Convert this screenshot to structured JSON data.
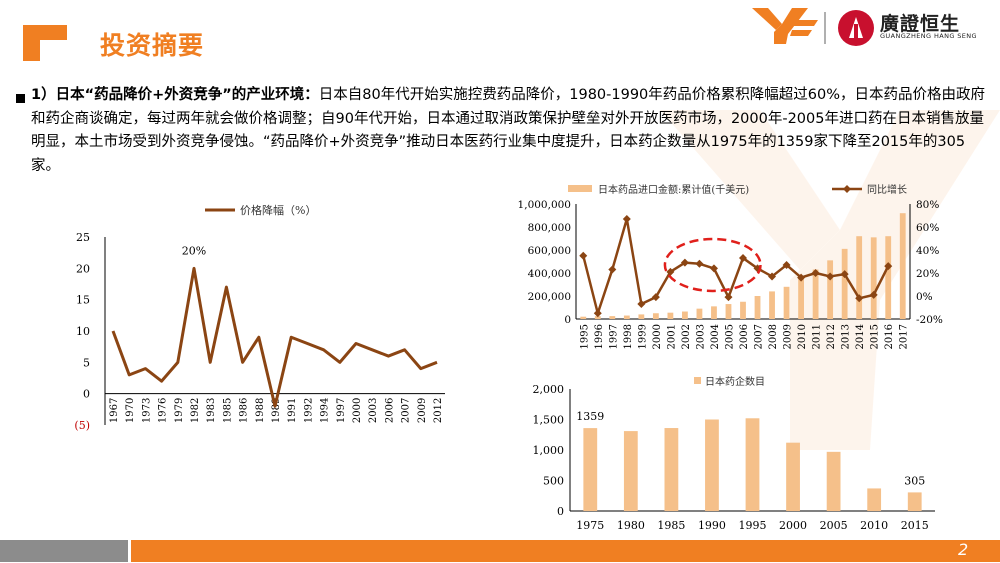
{
  "header": {
    "title": "投资摘要",
    "logo_cn": "廣證恒生",
    "logo_en": "GUANGZHENG HANG SENG",
    "page_number": "2"
  },
  "paragraph": {
    "lead": "1）日本“药品降价+外资竞争”的产业环境：",
    "body": "日本自80年代开始实施控费药品降价，1980-1990年药品价格累积降幅超过60%，日本药品价格由政府和药企商谈确定，每过两年就会做价格调整；自90年代开始，日本通过取消政策保护壁垒对外开放医药市场，2000年-2005年进口药在日本销售放量明显，本土市场受到外资竞争侵蚀。“药品降价+外资竞争”推动日本医药行业集中度提升，日本药企数量从1975年的1359家下降至2015年的305家。"
  },
  "colors": {
    "accent": "#f07f22",
    "line_brown": "#8b4513",
    "bar_tan": "#f5c08a",
    "ellipse_red": "#e0201b",
    "footer_grey": "#8c8c8c"
  },
  "chart_data": [
    {
      "type": "line",
      "legend": "价格降幅（%）",
      "categories": [
        "1967",
        "1970",
        "1973",
        "1976",
        "1979",
        "1982",
        "1983",
        "1985",
        "1986",
        "1988",
        "1989",
        "1991",
        "1992",
        "1994",
        "1997",
        "2000",
        "2003",
        "2006",
        "2007",
        "2009",
        "2012"
      ],
      "values": [
        10,
        3,
        4,
        2,
        5,
        20,
        5,
        17,
        5,
        9,
        -2,
        9,
        8,
        7,
        5,
        8,
        7,
        6,
        7,
        4,
        5
      ],
      "annotation": "20%",
      "ylim": [
        -5,
        25
      ],
      "yticks": [
        "25",
        "20",
        "15",
        "10",
        "5",
        "0",
        "(5)"
      ]
    },
    {
      "type": "bar+line",
      "categories": [
        "1995",
        "1996",
        "1997",
        "1998",
        "1999",
        "2000",
        "2001",
        "2002",
        "2003",
        "2004",
        "2005",
        "2006",
        "2007",
        "2008",
        "2009",
        "2010",
        "2011",
        "2012",
        "2013",
        "2014",
        "2015",
        "2016",
        "2017"
      ],
      "series": [
        {
          "name": "日本药品进口金额:累计值(千美元)",
          "type": "bar",
          "axis": "left",
          "values": [
            20000,
            25000,
            25000,
            30000,
            40000,
            50000,
            55000,
            65000,
            90000,
            110000,
            130000,
            150000,
            200000,
            240000,
            280000,
            370000,
            430000,
            510000,
            610000,
            720000,
            710000,
            720000,
            920000
          ]
        },
        {
          "name": "同比增长",
          "type": "line",
          "axis": "right",
          "values": [
            35,
            -15,
            23,
            67,
            -7,
            -1,
            21,
            29,
            28,
            24,
            -1,
            33,
            24,
            17,
            27,
            16,
            20,
            17,
            19,
            -2,
            1,
            26,
            null
          ]
        }
      ],
      "left_ticks": [
        "1,000,000",
        "800,000",
        "600,000",
        "400,000",
        "200,000",
        "0"
      ],
      "right_ticks": [
        "80%",
        "60%",
        "40%",
        "20%",
        "0%",
        "-20%"
      ],
      "ylim_left": [
        0,
        1000000
      ],
      "ylim_right": [
        -20,
        80
      ]
    },
    {
      "type": "bar",
      "legend": "日本药企数目",
      "categories": [
        "1975",
        "1980",
        "1985",
        "1990",
        "1995",
        "2000",
        "2005",
        "2010",
        "2015"
      ],
      "values": [
        1359,
        1310,
        1360,
        1500,
        1520,
        1120,
        970,
        370,
        305
      ],
      "data_labels": [
        "1359",
        "",
        "",
        "",
        "",
        "",
        "",
        "",
        "305"
      ],
      "ylim": [
        0,
        2000
      ],
      "yticks": [
        "2,000",
        "1,500",
        "1,000",
        "500",
        "0"
      ]
    }
  ]
}
